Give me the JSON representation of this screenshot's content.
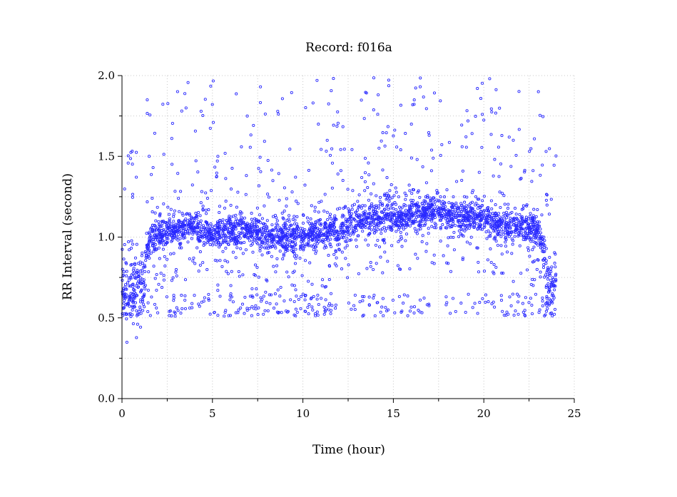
{
  "chart_data": {
    "type": "scatter",
    "title": "Record:  f016a",
    "xlabel": "Time (hour)",
    "ylabel": "RR Interval (second)",
    "xlim": [
      0,
      25
    ],
    "ylim": [
      0,
      2.0
    ],
    "x_ticks": [
      "0",
      "5",
      "10",
      "15",
      "20",
      "25"
    ],
    "y_ticks": [
      "0.0",
      "0.5",
      "1.0",
      "1.5",
      "2.0"
    ],
    "grid": true,
    "marker": "open-circle",
    "color": "#2a2aff",
    "series": [
      {
        "name": "",
        "baseline": [
          [
            0.0,
            0.68
          ],
          [
            0.3,
            0.66
          ],
          [
            0.6,
            0.67
          ],
          [
            0.9,
            0.68
          ],
          [
            1.2,
            0.72
          ],
          [
            1.4,
            0.9
          ],
          [
            1.6,
            1.0
          ],
          [
            2.0,
            1.02
          ],
          [
            2.5,
            1.03
          ],
          [
            3.0,
            1.05
          ],
          [
            3.5,
            1.06
          ],
          [
            4.0,
            1.07
          ],
          [
            4.5,
            1.05
          ],
          [
            5.0,
            1.02
          ],
          [
            5.5,
            1.02
          ],
          [
            6.0,
            1.03
          ],
          [
            6.5,
            1.03
          ],
          [
            7.0,
            1.03
          ],
          [
            7.5,
            1.02
          ],
          [
            8.0,
            1.0
          ],
          [
            8.5,
            1.0
          ],
          [
            9.0,
            1.0
          ],
          [
            9.5,
            1.0
          ],
          [
            10.0,
            1.0
          ],
          [
            10.5,
            1.02
          ],
          [
            11.0,
            1.02
          ],
          [
            11.5,
            1.05
          ],
          [
            12.0,
            1.03
          ],
          [
            12.5,
            1.08
          ],
          [
            13.0,
            1.1
          ],
          [
            13.5,
            1.1
          ],
          [
            14.0,
            1.12
          ],
          [
            14.5,
            1.13
          ],
          [
            15.0,
            1.13
          ],
          [
            15.5,
            1.13
          ],
          [
            16.0,
            1.15
          ],
          [
            16.5,
            1.13
          ],
          [
            17.0,
            1.17
          ],
          [
            17.5,
            1.18
          ],
          [
            18.0,
            1.12
          ],
          [
            18.5,
            1.12
          ],
          [
            19.0,
            1.13
          ],
          [
            19.5,
            1.13
          ],
          [
            20.0,
            1.12
          ],
          [
            20.5,
            1.08
          ],
          [
            21.0,
            1.08
          ],
          [
            21.5,
            1.07
          ],
          [
            22.0,
            1.05
          ],
          [
            22.5,
            1.05
          ],
          [
            23.0,
            1.05
          ],
          [
            23.3,
            0.92
          ],
          [
            23.5,
            0.7
          ],
          [
            23.8,
            0.7
          ],
          [
            24.0,
            0.72
          ]
        ],
        "spread": 0.05,
        "lower_band": 0.58,
        "upper_scatter_range": [
          1.2,
          2.0
        ]
      }
    ]
  }
}
